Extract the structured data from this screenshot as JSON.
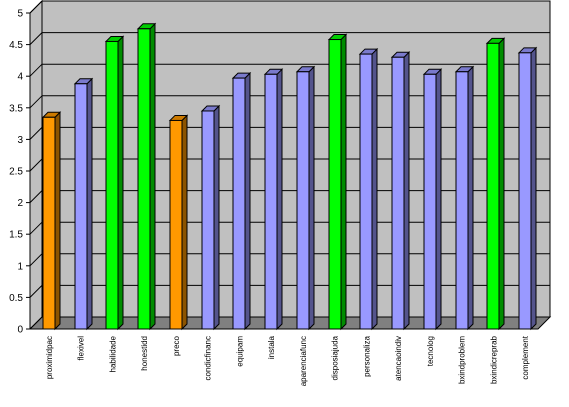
{
  "chart_data": {
    "type": "bar",
    "categories": [
      "proximidpac",
      "flexivel",
      "habilidade",
      "honestidd",
      "preco",
      "condicfinanc",
      "equipam",
      "instala",
      "aparenciafunc",
      "disposiajuda",
      "personaliza",
      "atencaoindiv",
      "tecnolog",
      "bxindproblem",
      "bxindicreprab",
      "complement"
    ],
    "values": [
      3.35,
      3.88,
      4.55,
      4.75,
      3.3,
      3.45,
      3.97,
      4.03,
      4.07,
      4.58,
      4.35,
      4.3,
      4.03,
      4.07,
      4.52,
      4.37
    ],
    "bar_colors": [
      "#ff9900",
      "#9999ff",
      "#00ff00",
      "#00ff00",
      "#ff9900",
      "#9999ff",
      "#9999ff",
      "#9999ff",
      "#9999ff",
      "#00ff00",
      "#9999ff",
      "#9999ff",
      "#9999ff",
      "#9999ff",
      "#00ff00",
      "#9999ff"
    ],
    "ylim": [
      0,
      5
    ],
    "yticks": [
      "0",
      "0.5",
      "1",
      "1.5",
      "2",
      "2.5",
      "3",
      "3.5",
      "4",
      "4.5",
      "5"
    ],
    "grid": true,
    "colors": {
      "wall": "#c0c0c0",
      "floor": "#808080",
      "gridline": "#000000"
    }
  }
}
